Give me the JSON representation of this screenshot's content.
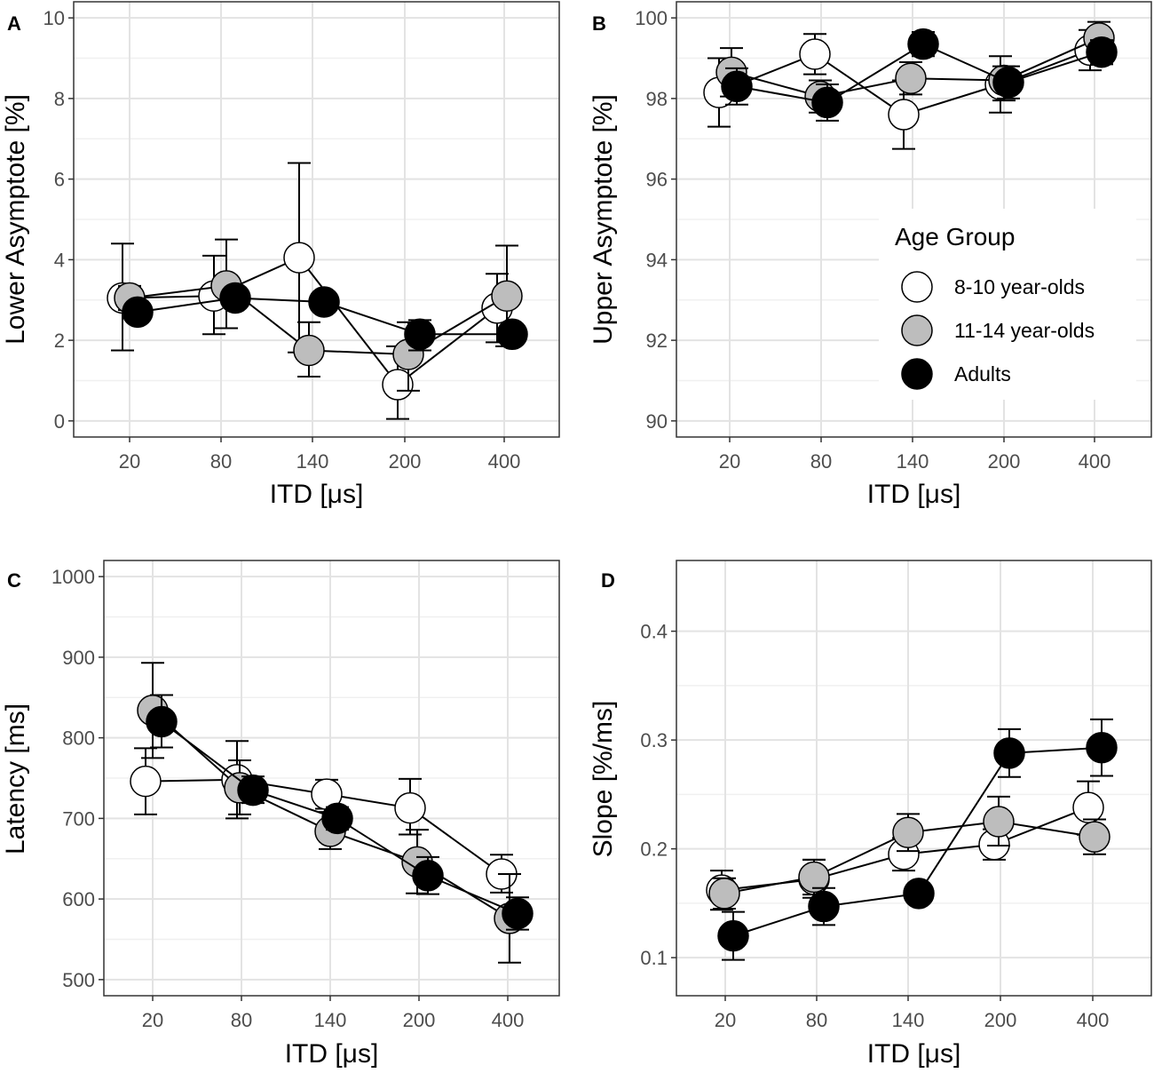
{
  "colors": {
    "grid": "#e3e3e3",
    "frame": "#333333",
    "line": "#000000",
    "fill_8_10": "#ffffff",
    "fill_11_14": "#bdbdbd",
    "fill_adults": "#000000"
  },
  "legend": {
    "title": "Age Group",
    "entries": [
      {
        "label": "8-10 year-olds",
        "color": "#ffffff"
      },
      {
        "label": "11-14 year-olds",
        "color": "#bdbdbd"
      },
      {
        "label": "Adults",
        "color": "#000000"
      }
    ]
  },
  "chart_data": [
    {
      "type": "line",
      "panel": "A",
      "categories": [
        "20",
        "80",
        "140",
        "200",
        "400"
      ],
      "xlabel": "ITD [μs]",
      "ylabel": "Lower Asymptote [%]",
      "ylim": [
        -0.4,
        10.4
      ],
      "yticks": [
        0,
        2,
        4,
        6,
        8,
        10
      ],
      "series": [
        {
          "name": "8-10 year-olds",
          "values": [
            3.05,
            3.1,
            4.05,
            0.9,
            2.8
          ],
          "lower": [
            1.75,
            2.15,
            1.7,
            0.05,
            1.95
          ],
          "upper": [
            4.4,
            4.1,
            6.4,
            1.85,
            3.65
          ]
        },
        {
          "name": "11-14 year-olds",
          "values": [
            3.05,
            3.35,
            1.75,
            1.65,
            3.1
          ],
          "lower": [
            2.75,
            2.3,
            1.1,
            0.75,
            1.85
          ],
          "upper": [
            3.35,
            4.5,
            2.45,
            2.45,
            4.35
          ]
        },
        {
          "name": "Adults",
          "values": [
            2.7,
            3.05,
            2.95,
            2.15,
            2.15
          ],
          "lower": [
            2.6,
            2.9,
            2.75,
            1.75,
            2.05
          ],
          "upper": [
            2.8,
            3.2,
            3.15,
            2.5,
            2.3
          ]
        }
      ]
    },
    {
      "type": "line",
      "panel": "B",
      "categories": [
        "20",
        "80",
        "140",
        "200",
        "400"
      ],
      "xlabel": "ITD [μs]",
      "ylabel": "Upper Asymptote [%]",
      "ylim": [
        89.6,
        100.4
      ],
      "yticks": [
        90,
        92,
        94,
        96,
        98,
        100
      ],
      "series": [
        {
          "name": "8-10 year-olds",
          "values": [
            98.15,
            99.1,
            97.6,
            98.35,
            99.2
          ],
          "lower": [
            97.3,
            98.6,
            96.75,
            97.65,
            98.7
          ],
          "upper": [
            99.0,
            99.6,
            98.45,
            99.05,
            99.7
          ]
        },
        {
          "name": "11-14 year-olds",
          "values": [
            98.65,
            98.05,
            98.5,
            98.45,
            99.5
          ],
          "lower": [
            98.05,
            97.65,
            98.1,
            97.95,
            99.1
          ],
          "upper": [
            99.25,
            98.45,
            98.9,
            98.8,
            99.9
          ]
        },
        {
          "name": "Adults",
          "values": [
            98.3,
            97.9,
            99.35,
            98.4,
            99.15
          ],
          "lower": [
            97.85,
            97.45,
            99.05,
            98.0,
            98.85
          ],
          "upper": [
            98.75,
            98.35,
            99.65,
            98.8,
            99.45
          ]
        }
      ]
    },
    {
      "type": "line",
      "panel": "C",
      "categories": [
        "20",
        "80",
        "140",
        "200",
        "400"
      ],
      "xlabel": "ITD [μs]",
      "ylabel": "Latency [ms]",
      "ylim": [
        480,
        1020
      ],
      "yticks": [
        500,
        600,
        700,
        800,
        900,
        1000
      ],
      "series": [
        {
          "name": "8-10 year-olds",
          "values": [
            746,
            748,
            730,
            713,
            631
          ],
          "lower": [
            705,
            700,
            712,
            680,
            608
          ],
          "upper": [
            787,
            796,
            748,
            749,
            655
          ]
        },
        {
          "name": "11-14 year-olds",
          "values": [
            834,
            738,
            684,
            646,
            576
          ],
          "lower": [
            775,
            705,
            662,
            607,
            521
          ],
          "upper": [
            893,
            772,
            708,
            686,
            631
          ]
        },
        {
          "name": "Adults",
          "values": [
            820,
            735,
            700,
            629,
            582
          ],
          "lower": [
            788,
            719,
            686,
            606,
            562
          ],
          "upper": [
            853,
            752,
            714,
            652,
            602
          ]
        }
      ]
    },
    {
      "type": "line",
      "panel": "D",
      "categories": [
        "20",
        "80",
        "140",
        "200",
        "400"
      ],
      "xlabel": "ITD [μs]",
      "ylabel": "Slope [%/ms]",
      "ylim": [
        0.065,
        0.465
      ],
      "yticks": [
        0.1,
        0.2,
        0.3,
        0.4
      ],
      "series": [
        {
          "name": "8-10 year-olds",
          "values": [
            0.162,
            0.172,
            0.195,
            0.204,
            0.238
          ],
          "lower": [
            0.144,
            0.155,
            0.18,
            0.19,
            0.213
          ],
          "upper": [
            0.18,
            0.19,
            0.21,
            0.218,
            0.262
          ]
        },
        {
          "name": "11-14 year-olds",
          "values": [
            0.159,
            0.174,
            0.215,
            0.225,
            0.211
          ],
          "lower": [
            0.145,
            0.158,
            0.198,
            0.203,
            0.195
          ],
          "upper": [
            0.173,
            0.19,
            0.232,
            0.248,
            0.227
          ]
        },
        {
          "name": "Adults",
          "values": [
            0.12,
            0.147,
            0.159,
            0.288,
            0.293
          ],
          "lower": [
            0.098,
            0.13,
            0.159,
            0.266,
            0.267
          ],
          "upper": [
            0.142,
            0.164,
            0.159,
            0.31,
            0.319
          ]
        }
      ]
    }
  ]
}
